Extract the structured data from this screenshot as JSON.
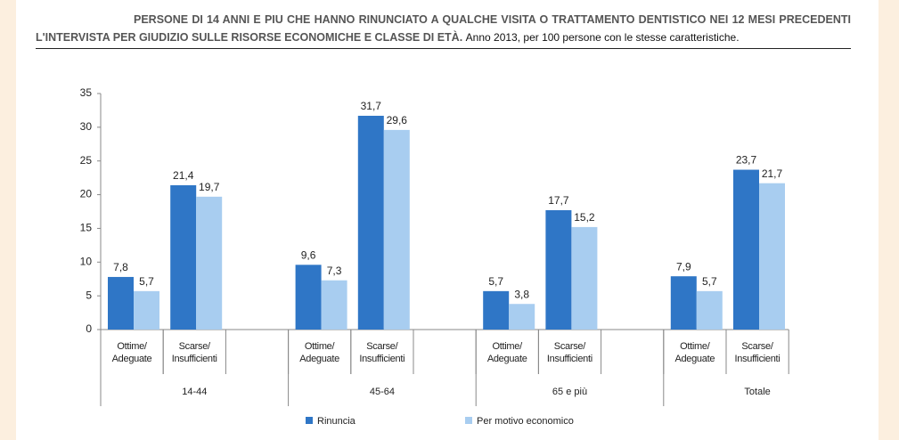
{
  "chart_data": {
    "type": "bar",
    "title": "PERSONE DI 14 ANNI E PIU CHE HANNO RINUNCIATO A QUALCHE VISITA O TRATTAMENTO DENTISTICO NEI 12 MESI PRECEDENTI L'INTERVISTA PER GIUDIZIO SULLE RISORSE ECONOMICHE E CLASSE DI ETÀ.",
    "subtitle": "Anno 2013, per 100 persone con le stesse caratteristiche.",
    "categories": [
      "Ottime/ Adeguate",
      "Scarse/ Insufficienti",
      null,
      "Ottime/ Adeguate",
      "Scarse/ Insufficienti",
      null,
      "Ottime/ Adeguate",
      "Scarse/ Insufficienti",
      null,
      "Ottime/ Adeguate",
      "Scarse/ Insufficienti",
      null
    ],
    "groups": [
      "14-44",
      "45-64",
      "65 e più",
      "Totale"
    ],
    "series": [
      {
        "name": "Rinuncia",
        "color": "#2f76c6",
        "values": [
          7.8,
          21.4,
          null,
          9.6,
          31.7,
          null,
          5.7,
          17.7,
          null,
          7.9,
          23.7,
          null
        ],
        "value_labels": [
          "7,8",
          "21,4",
          null,
          "9,6",
          "31,7",
          null,
          "5,7",
          "17,7",
          null,
          "7,9",
          "23,7",
          null
        ]
      },
      {
        "name": "Per motivo economico",
        "color": "#a8cdf0",
        "values": [
          5.7,
          19.7,
          null,
          7.3,
          29.6,
          null,
          3.8,
          15.2,
          null,
          5.7,
          21.7,
          null
        ],
        "value_labels": [
          "5,7",
          "19,7",
          null,
          "7,3",
          "29,6",
          null,
          "3,8",
          "15,2",
          null,
          "5,7",
          "21,7",
          null
        ]
      }
    ],
    "ylim": [
      0,
      35
    ],
    "yticks": [
      0,
      5,
      10,
      15,
      20,
      25,
      30,
      35
    ],
    "grid": false,
    "legend": "bottom"
  }
}
